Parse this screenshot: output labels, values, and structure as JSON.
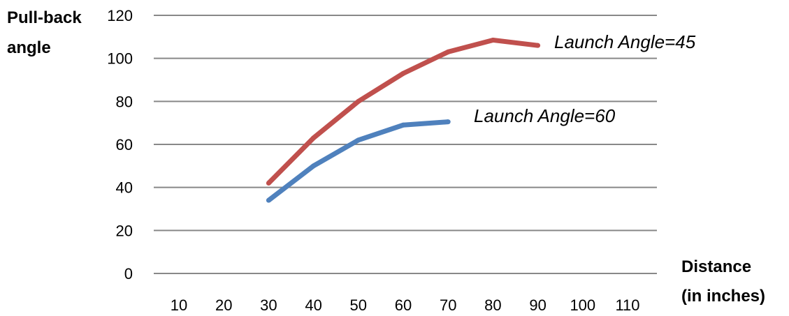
{
  "chart_data": {
    "type": "line",
    "title": "",
    "ylabel_lines": [
      "Pull-back",
      "angle"
    ],
    "xlabel_lines": [
      "Distance",
      "(in inches)"
    ],
    "x_ticks": [
      10,
      20,
      30,
      40,
      50,
      60,
      70,
      80,
      90,
      100,
      110
    ],
    "y_ticks": [
      0,
      20,
      40,
      60,
      80,
      100,
      120
    ],
    "xlim": [
      10,
      110
    ],
    "ylim": [
      0,
      120
    ],
    "grid": "horizontal",
    "series": [
      {
        "name": "Launch Angle=45",
        "color": "#c0504d",
        "x": [
          30,
          40,
          50,
          60,
          70,
          80,
          90
        ],
        "y": [
          42,
          63,
          80,
          93,
          103,
          108.5,
          106
        ]
      },
      {
        "name": "Launch Angle=60",
        "color": "#4f81bd",
        "x": [
          30,
          40,
          50,
          60,
          70
        ],
        "y": [
          34,
          50,
          62,
          69,
          70.5
        ]
      }
    ]
  }
}
